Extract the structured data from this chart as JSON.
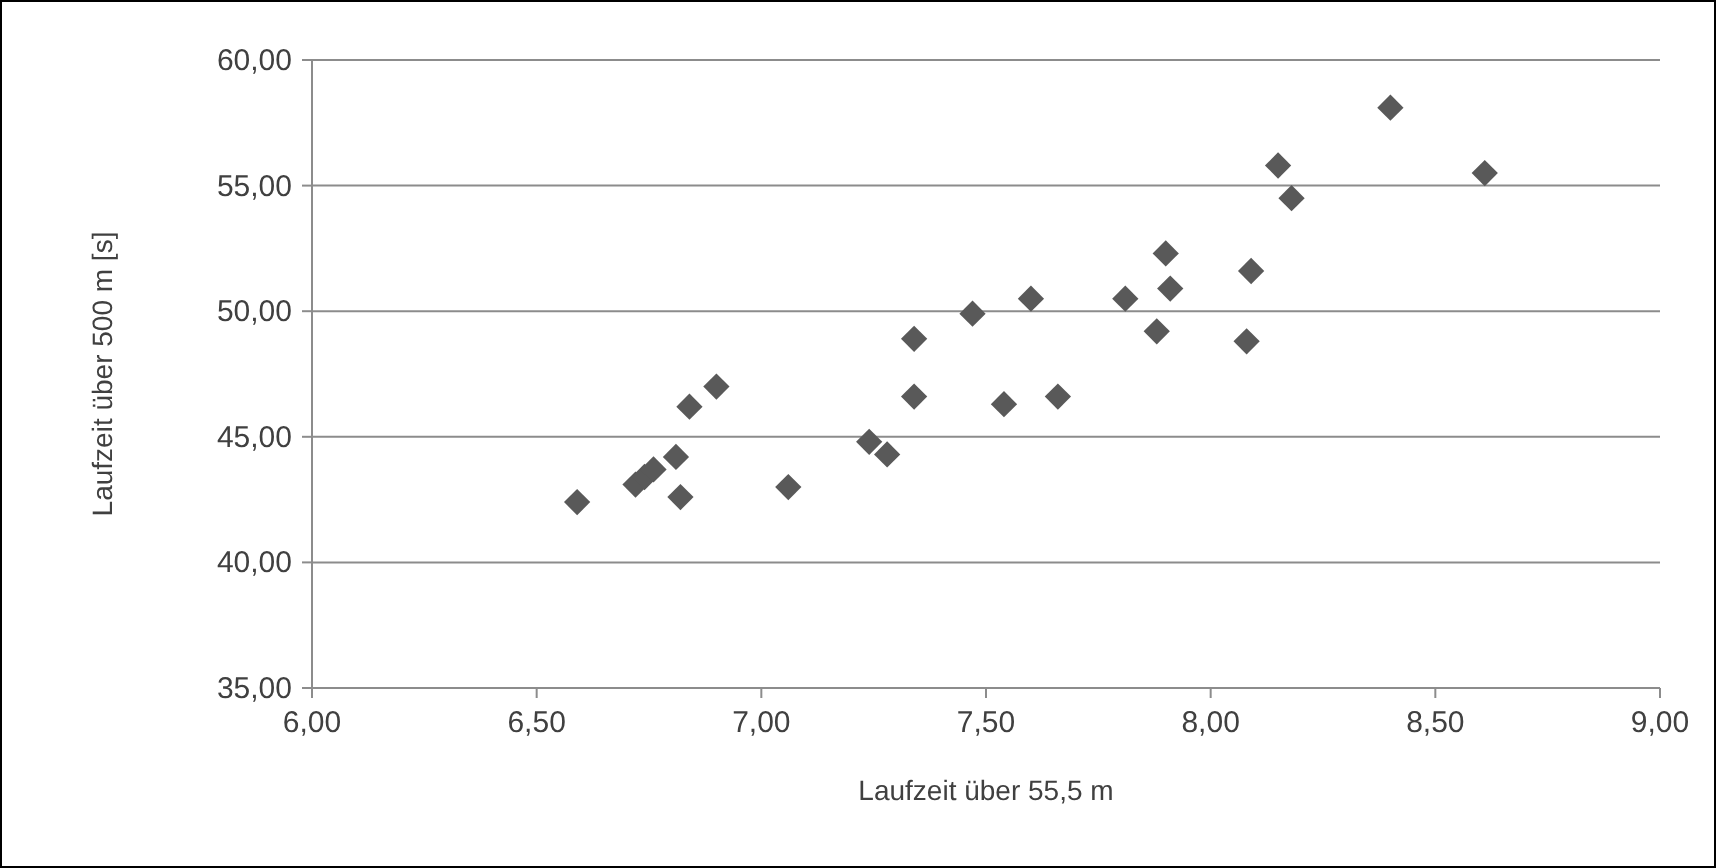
{
  "chart_data": {
    "type": "scatter",
    "xlabel": "Laufzeit über 55,5 m",
    "ylabel": "Laufzeit über 500 m [s]",
    "xlim": [
      6,
      9
    ],
    "ylim": [
      35,
      60
    ],
    "xticks": [
      {
        "value": 6,
        "label": "6,00"
      },
      {
        "value": 6.5,
        "label": "6,50"
      },
      {
        "value": 7,
        "label": "7,00"
      },
      {
        "value": 7.5,
        "label": "7,50"
      },
      {
        "value": 8,
        "label": "8,00"
      },
      {
        "value": 8.5,
        "label": "8,50"
      },
      {
        "value": 9,
        "label": "9,00"
      }
    ],
    "yticks": [
      {
        "value": 35,
        "label": "35,00"
      },
      {
        "value": 40,
        "label": "40,00"
      },
      {
        "value": 45,
        "label": "45,00"
      },
      {
        "value": 50,
        "label": "50,00"
      },
      {
        "value": 55,
        "label": "55,00"
      },
      {
        "value": 60,
        "label": "60,00"
      }
    ],
    "grid": "y",
    "marker": "diamond",
    "series": [
      {
        "color": "#595959",
        "x": [
          6.59,
          6.72,
          6.74,
          6.76,
          6.81,
          6.82,
          6.84,
          6.9,
          7.06,
          7.24,
          7.28,
          7.34,
          7.34,
          7.47,
          7.54,
          7.6,
          7.66,
          7.81,
          7.88,
          7.9,
          7.91,
          8.08,
          8.09,
          8.15,
          8.18,
          8.4,
          8.61
        ],
        "values": [
          42.4,
          43.1,
          43.4,
          43.7,
          44.2,
          42.6,
          46.2,
          47.0,
          43.0,
          44.8,
          44.3,
          48.9,
          46.6,
          49.9,
          46.3,
          50.5,
          46.6,
          50.5,
          49.2,
          52.3,
          50.9,
          48.8,
          51.6,
          55.8,
          54.5,
          58.1,
          55.5
        ]
      }
    ]
  }
}
